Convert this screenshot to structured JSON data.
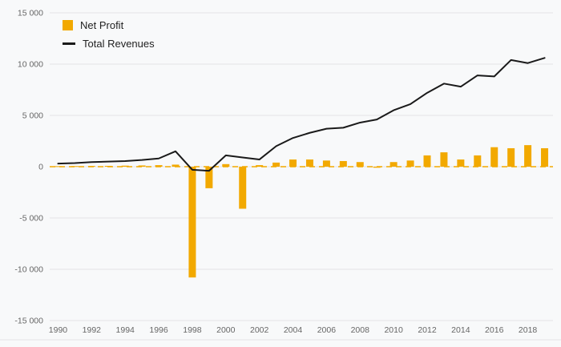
{
  "chart_data": {
    "type": "bar",
    "subtype": "combo-bar-line",
    "title": "",
    "categories": [
      1990,
      1991,
      1992,
      1993,
      1994,
      1995,
      1996,
      1997,
      1998,
      1999,
      2000,
      2001,
      2002,
      2003,
      2004,
      2005,
      2006,
      2007,
      2008,
      2009,
      2010,
      2011,
      2012,
      2013,
      2014,
      2015,
      2016,
      2017,
      2018,
      2019
    ],
    "series": [
      {
        "name": "Net Profit",
        "type": "bar",
        "color": "#F2A900",
        "values": [
          50,
          60,
          70,
          80,
          100,
          120,
          150,
          200,
          -10800,
          -2100,
          250,
          -4100,
          150,
          400,
          700,
          700,
          600,
          550,
          450,
          -100,
          450,
          600,
          1100,
          1400,
          700,
          1100,
          1900,
          1800,
          2100,
          1800
        ]
      },
      {
        "name": "Total Revenues",
        "type": "line",
        "color": "#1a1a1a",
        "values": [
          300,
          350,
          450,
          500,
          550,
          650,
          800,
          1500,
          -300,
          -400,
          1100,
          900,
          700,
          2000,
          2800,
          3300,
          3700,
          3800,
          4300,
          4600,
          5500,
          6100,
          7200,
          8100,
          7800,
          8900,
          8800,
          10400,
          10100,
          10600
        ]
      }
    ],
    "ylim": [
      -15000,
      15000
    ],
    "yticks": [
      15000,
      10000,
      5000,
      0,
      -5000,
      -10000,
      -15000
    ],
    "ytick_labels": [
      "15 000",
      "10 000",
      "5 000",
      "0",
      "-5 000",
      "-10 000",
      "-15 000"
    ],
    "xtick_labels": [
      "1990",
      "1992",
      "1994",
      "1996",
      "1998",
      "2000",
      "2002",
      "2004",
      "2006",
      "2008",
      "2010",
      "2012",
      "2014",
      "2016",
      "2018"
    ],
    "legend_position": "top-left",
    "grid": true,
    "grid_color": "#e3e4e6",
    "axis_text_color": "#666666",
    "background_color": "#f8f9fa",
    "zero_line": {
      "style": "dashed",
      "color": "#F2A900"
    }
  }
}
